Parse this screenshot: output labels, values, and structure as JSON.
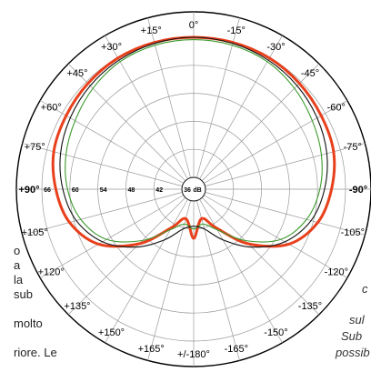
{
  "left_text": {
    "lines": [
      "o",
      "a",
      "la",
      "sub",
      "molto",
      "riore. Le"
    ]
  },
  "right_text": {
    "lines": [
      "c",
      "sul",
      "Sub",
      "possib"
    ]
  },
  "chart_data": {
    "type": "polar",
    "angle_labels": [
      {
        "deg": 0,
        "text": "0°"
      },
      {
        "deg": 15,
        "text": "+15°"
      },
      {
        "deg": 30,
        "text": "+30°"
      },
      {
        "deg": 45,
        "text": "+45°"
      },
      {
        "deg": 60,
        "text": "+60°"
      },
      {
        "deg": 75,
        "text": "+75°"
      },
      {
        "deg": 90,
        "text": "+90°",
        "bold": true
      },
      {
        "deg": 105,
        "text": "+105°"
      },
      {
        "deg": 120,
        "text": "+120°"
      },
      {
        "deg": 135,
        "text": "+135°"
      },
      {
        "deg": 150,
        "text": "+150°"
      },
      {
        "deg": 165,
        "text": "+165°"
      },
      {
        "deg": 180,
        "text": "+/-180°"
      },
      {
        "deg": -15,
        "text": "-15°"
      },
      {
        "deg": -30,
        "text": "-30°"
      },
      {
        "deg": -45,
        "text": "-45°"
      },
      {
        "deg": -60,
        "text": "-60°"
      },
      {
        "deg": -75,
        "text": "-75°"
      },
      {
        "deg": -90,
        "text": "-90°",
        "bold": true
      },
      {
        "deg": -105,
        "text": "-105°"
      },
      {
        "deg": -120,
        "text": "-120°"
      },
      {
        "deg": -135,
        "text": "-135°"
      },
      {
        "deg": -150,
        "text": "-150°"
      },
      {
        "deg": -165,
        "text": "-165°"
      }
    ],
    "radial_scale": {
      "unit_label": "dB",
      "tick_labels": [
        "66",
        "60",
        "54",
        "48",
        "42",
        "36"
      ],
      "min_db": 36,
      "max_db": 66
    },
    "series": [
      {
        "color": "#e8401c",
        "points": [
          {
            "deg": 0,
            "db": 66
          },
          {
            "deg": 15,
            "db": 66
          },
          {
            "deg": 30,
            "db": 65.9
          },
          {
            "deg": 45,
            "db": 65.5
          },
          {
            "deg": 60,
            "db": 65
          },
          {
            "deg": 75,
            "db": 64.5
          },
          {
            "deg": 90,
            "db": 63
          },
          {
            "deg": 105,
            "db": 61
          },
          {
            "deg": 120,
            "db": 57
          },
          {
            "deg": 135,
            "db": 50
          },
          {
            "deg": 150,
            "db": 43
          },
          {
            "deg": 165,
            "db": 40
          },
          {
            "deg": 180,
            "db": 44
          }
        ]
      },
      {
        "color": "#3c9a2c",
        "points": [
          {
            "deg": 0,
            "db": 65.5
          },
          {
            "deg": 15,
            "db": 65.4
          },
          {
            "deg": 30,
            "db": 65
          },
          {
            "deg": 45,
            "db": 64
          },
          {
            "deg": 60,
            "db": 62.8
          },
          {
            "deg": 75,
            "db": 61.8
          },
          {
            "deg": 90,
            "db": 60.5
          },
          {
            "deg": 105,
            "db": 58.5
          },
          {
            "deg": 120,
            "db": 55
          },
          {
            "deg": 135,
            "db": 49
          },
          {
            "deg": 150,
            "db": 43.5
          },
          {
            "deg": 165,
            "db": 41.2
          },
          {
            "deg": 180,
            "db": 42
          }
        ]
      },
      {
        "color": "#111111",
        "points": [
          {
            "deg": 0,
            "db": 66
          },
          {
            "deg": 15,
            "db": 65.8
          },
          {
            "deg": 30,
            "db": 65.4
          },
          {
            "deg": 45,
            "db": 64.8
          },
          {
            "deg": 60,
            "db": 64
          },
          {
            "deg": 75,
            "db": 63
          },
          {
            "deg": 90,
            "db": 61.5
          },
          {
            "deg": 105,
            "db": 59.5
          },
          {
            "deg": 120,
            "db": 56
          },
          {
            "deg": 135,
            "db": 51
          },
          {
            "deg": 150,
            "db": 46
          },
          {
            "deg": 165,
            "db": 42.3
          },
          {
            "deg": 180,
            "db": 41.4
          }
        ]
      }
    ],
    "grid": true,
    "symmetric": true
  }
}
